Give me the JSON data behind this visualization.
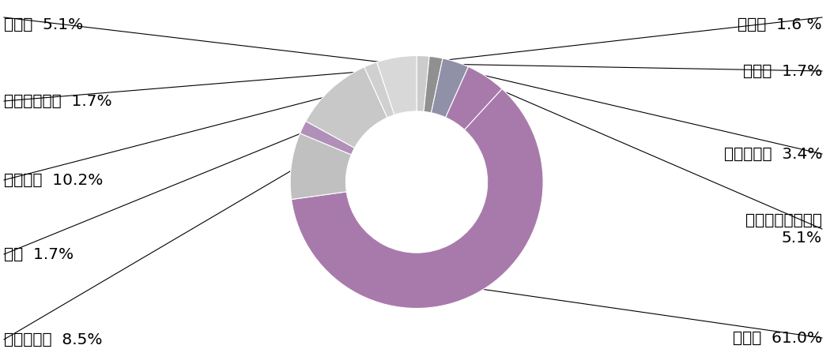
{
  "order_labels": [
    "その他",
    "製造業",
    "情報通信業",
    "技術・サービス業",
    "建設業",
    "卸・小売業",
    "輸送",
    "不動産業",
    "金融・保険業",
    "公務員"
  ],
  "order_values": [
    1.6,
    1.7,
    3.4,
    5.1,
    61.0,
    8.5,
    1.7,
    10.2,
    1.7,
    5.1
  ],
  "order_colors": [
    "#CCCCCC",
    "#909090",
    "#9090A8",
    "#A87AAB",
    "#A87AAB",
    "#C0C0C0",
    "#B090B8",
    "#C8C8C8",
    "#D0D0D0",
    "#D8D8D8"
  ],
  "bg_color": "#FFFFFF",
  "donut_inner_ratio": 0.56,
  "label_configs": [
    {
      "label": "その他",
      "pct": "1.6 %",
      "side": "right"
    },
    {
      "label": "製造業",
      "pct": "1.7%",
      "side": "right"
    },
    {
      "label": "情報通信業",
      "pct": "3.4%",
      "side": "right"
    },
    {
      "label": "技術・サービス業\n5.1%",
      "pct": null,
      "side": "right"
    },
    {
      "label": "建設業",
      "pct": "61.0%",
      "side": "right"
    },
    {
      "label": "卸・小売業",
      "pct": "8.5%",
      "side": "left"
    },
    {
      "label": "輸送",
      "pct": "1.7%",
      "side": "left"
    },
    {
      "label": "不動産業",
      "pct": "10.2%",
      "side": "left"
    },
    {
      "label": "金融・保険業",
      "pct": "1.7%",
      "side": "left"
    },
    {
      "label": "公務員",
      "pct": "5.1%",
      "side": "left"
    }
  ]
}
